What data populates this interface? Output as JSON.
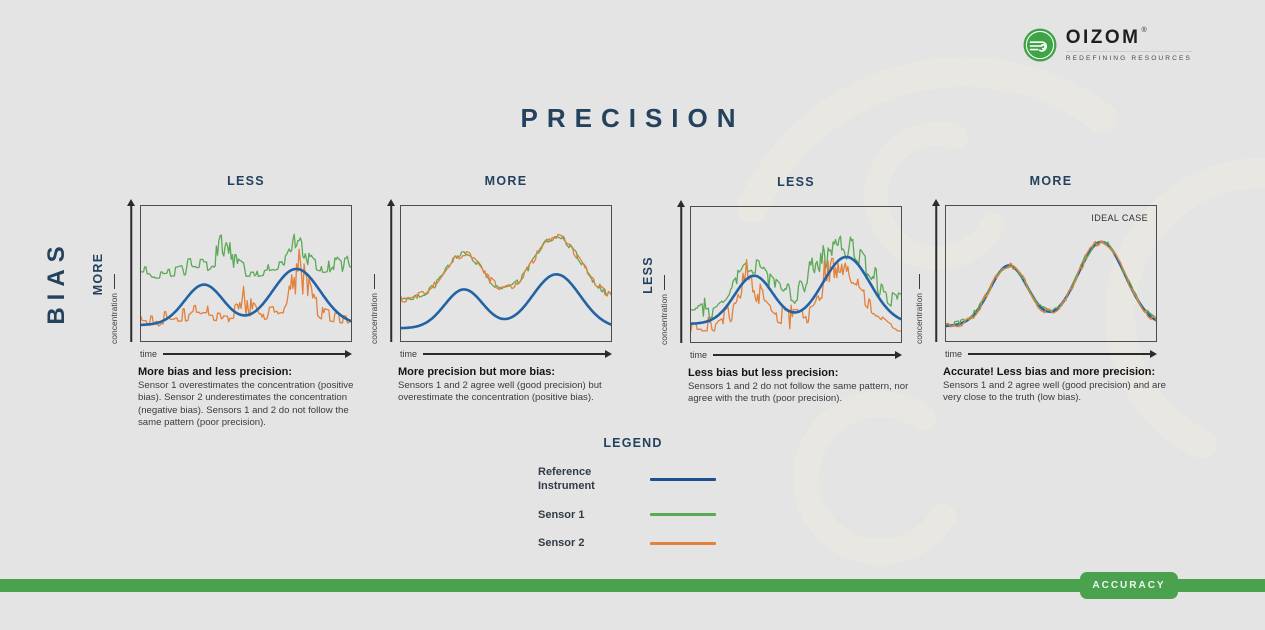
{
  "page": {
    "title": "PRECISION"
  },
  "logo": {
    "name": "OIZOM",
    "registered": "®",
    "tagline": "REDEFINING RESOURCES"
  },
  "bias_label": "BIAS",
  "legend": {
    "title": "LEGEND",
    "items": [
      {
        "label": "Reference Instrument",
        "color": "#1d4f8c"
      },
      {
        "label": "Sensor 1",
        "color": "#5ba955"
      },
      {
        "label": "Sensor 2",
        "color": "#e2813b"
      }
    ]
  },
  "accuracy_label": "ACCURACY",
  "colors": {
    "background": "#e4e4e4",
    "bar_green": "#4aa24e",
    "navy": "#24415e",
    "box_border": "#4d4d4d",
    "watermark": "#e9e7e1",
    "blue_line": "#2263a5",
    "green_line": "#5ba955",
    "orange_line": "#e2813b"
  },
  "waveform": {
    "h1": 0.72,
    "c1": 0.3,
    "w1": 0.13,
    "h2": 1.0,
    "c2": 0.74,
    "w2": 0.16
  },
  "chart_data": [
    {
      "type": "line",
      "top_label": "LESS",
      "side_label": "MORE",
      "inner_label": null,
      "xlabel": "time",
      "ylabel": "concentration",
      "caption_title": "More bias and less precision:",
      "caption_body": "Sensor 1 overestimates the concentration (positive bias). Sensor 2 underestimates the concentration (negative bias). Sensors 1 and 2 do not follow the same pattern (poor precision).",
      "truth": {
        "name": "Reference Instrument",
        "color": "#2263a5",
        "base": 0.06,
        "amp": 0.52,
        "on_top": true
      },
      "series": [
        {
          "name": "Sensor 1",
          "color": "#5ba955",
          "seed": 11,
          "base": 0.55,
          "amp": 0.1,
          "noise": 0.07,
          "spikes": [
            {
              "c": 0.4,
              "w": 0.045,
              "a": 0.42
            },
            {
              "c": 0.74,
              "w": 0.05,
              "a": 0.22
            },
            {
              "c": 0.95,
              "w": 0.05,
              "a": 0.12
            }
          ]
        },
        {
          "name": "Sensor 2",
          "color": "#e2813b",
          "seed": 22,
          "base": 0.12,
          "amp": 0.08,
          "noise": 0.07,
          "spikes": [
            {
              "c": 0.5,
              "w": 0.04,
              "a": 0.3
            },
            {
              "c": 0.76,
              "w": 0.055,
              "a": 0.55
            }
          ]
        }
      ]
    },
    {
      "type": "line",
      "top_label": "MORE",
      "side_label": null,
      "inner_label": null,
      "xlabel": "time",
      "ylabel": "concentration",
      "caption_title": "More precision but more bias:",
      "caption_body": "Sensors 1 and 2 agree well (good precision) but overestimate the concentration (positive bias).",
      "truth": {
        "name": "Reference Instrument",
        "color": "#2263a5",
        "base": 0.03,
        "amp": 0.5,
        "on_top": false
      },
      "series": [
        {
          "name": "Sensor 1",
          "color": "#5ba955",
          "seed": 33,
          "base": 0.3,
          "amp": 0.58,
          "noise": 0.03,
          "spikes": []
        },
        {
          "name": "Sensor 2",
          "color": "#e2813b",
          "seed": 44,
          "base": 0.3,
          "amp": 0.58,
          "noise": 0.034,
          "spikes": []
        }
      ]
    },
    {
      "type": "line",
      "top_label": "LESS",
      "side_label": "LESS",
      "inner_label": null,
      "xlabel": "time",
      "ylabel": "concentration",
      "caption_title": "Less bias but less precision:",
      "caption_body": "Sensors 1 and 2 do not follow the same pattern, nor agree with the truth (poor precision).",
      "truth": {
        "name": "Reference Instrument",
        "color": "#2263a5",
        "base": 0.08,
        "amp": 0.62,
        "on_top": true
      },
      "series": [
        {
          "name": "Sensor 1",
          "color": "#5ba955",
          "seed": 55,
          "base": 0.22,
          "amp": 0.55,
          "noise": 0.12,
          "spikes": [
            {
              "c": 0.63,
              "w": 0.1,
              "a": 0.25
            }
          ]
        },
        {
          "name": "Sensor 2",
          "color": "#e2813b",
          "seed": 66,
          "base": 0.06,
          "amp": 0.42,
          "noise": 0.12,
          "spikes": [
            {
              "c": 0.27,
              "w": 0.045,
              "a": 0.35
            },
            {
              "c": 0.68,
              "w": 0.06,
              "a": 0.4
            }
          ]
        }
      ]
    },
    {
      "type": "line",
      "top_label": "MORE",
      "side_label": null,
      "inner_label": "IDEAL CASE",
      "xlabel": "time",
      "ylabel": "concentration",
      "caption_title": "Accurate! Less bias and more precision:",
      "caption_body": "Sensors 1 and 2 agree well (good precision) and are very close to the truth (low bias).",
      "truth": {
        "name": "Reference Instrument",
        "color": "#2263a5",
        "base": 0.05,
        "amp": 0.78,
        "on_top": false
      },
      "series": [
        {
          "name": "Sensor 1",
          "color": "#5ba955",
          "seed": 77,
          "base": 0.06,
          "amp": 0.78,
          "noise": 0.026,
          "spikes": []
        },
        {
          "name": "Sensor 2",
          "color": "#e2813b",
          "seed": 88,
          "base": 0.05,
          "amp": 0.78,
          "noise": 0.03,
          "spikes": []
        }
      ]
    }
  ]
}
